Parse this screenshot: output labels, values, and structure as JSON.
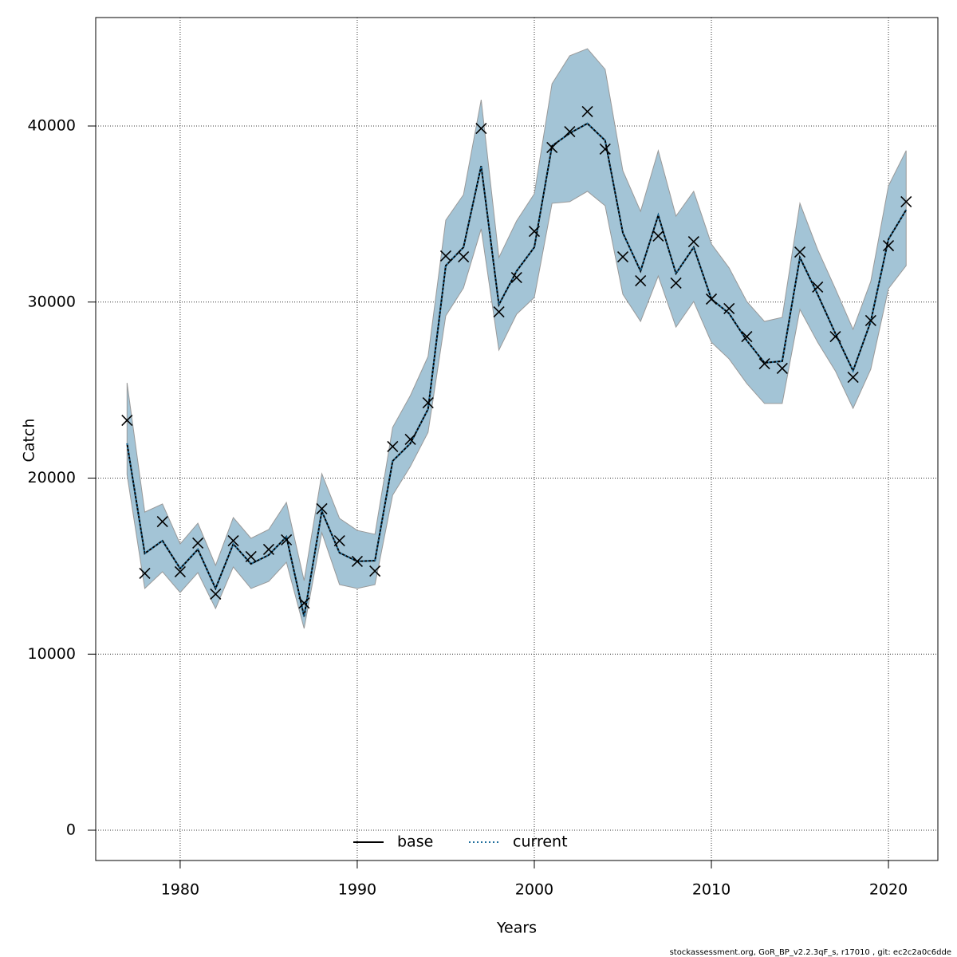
{
  "chart_data": {
    "type": "line",
    "x_label": "Years",
    "y_label": "Catch",
    "footer": "stockassessment.org, GoR_BP_v2.2.3qF_s, r17010 , git: ec2c2a0c6dde",
    "x": [
      1977,
      1978,
      1979,
      1980,
      1981,
      1982,
      1983,
      1984,
      1985,
      1986,
      1987,
      1988,
      1989,
      1990,
      1991,
      1992,
      1993,
      1994,
      1995,
      1996,
      1997,
      1998,
      1999,
      2000,
      2001,
      2002,
      2003,
      2004,
      2005,
      2006,
      2007,
      2008,
      2009,
      2010,
      2011,
      2012,
      2013,
      2014,
      2015,
      2016,
      2017,
      2018,
      2019,
      2020,
      2021
    ],
    "series": [
      {
        "name": "base",
        "color": "#000000",
        "values": [
          21970,
          15720,
          16440,
          14860,
          15950,
          13730,
          16260,
          15130,
          15630,
          16670,
          12140,
          18120,
          15760,
          15270,
          15310,
          20970,
          21970,
          23920,
          32070,
          33110,
          37730,
          29850,
          31760,
          33110,
          38870,
          39590,
          40140,
          39180,
          33930,
          31760,
          34930,
          31620,
          33110,
          30170,
          29350,
          27810,
          26550,
          26640,
          32530,
          30440,
          28220,
          26090,
          28900,
          33570,
          35240
        ]
      },
      {
        "name": "current",
        "color": "#1f6e9c",
        "values": [
          21970,
          15720,
          16440,
          14860,
          15950,
          13730,
          16260,
          15130,
          15630,
          16670,
          12140,
          18120,
          15760,
          15270,
          15310,
          20970,
          21970,
          23920,
          32070,
          33110,
          37730,
          29850,
          31760,
          33110,
          38870,
          39590,
          40140,
          39180,
          33930,
          31760,
          34930,
          31620,
          33110,
          30170,
          29350,
          27810,
          26550,
          26640,
          32530,
          30440,
          28220,
          26090,
          28900,
          33570,
          35240
        ]
      }
    ],
    "band": {
      "color": "#a3c4d6",
      "upper": [
        25410,
        18070,
        18530,
        16260,
        17440,
        15040,
        17760,
        16580,
        17080,
        18620,
        14180,
        20250,
        17710,
        17030,
        16810,
        22880,
        24690,
        26910,
        34650,
        36100,
        41490,
        32530,
        34610,
        36150,
        42400,
        43990,
        44390,
        43220,
        37460,
        35150,
        38600,
        34880,
        36290,
        33300,
        31940,
        30030,
        28900,
        29130,
        35610,
        32980,
        30760,
        28450,
        31170,
        36600,
        38600
      ],
      "lower": [
        20200,
        13730,
        14680,
        13500,
        14630,
        12590,
        14950,
        13730,
        14130,
        15220,
        11460,
        16900,
        13950,
        13730,
        13950,
        19030,
        20660,
        22600,
        29220,
        30800,
        34160,
        27270,
        29310,
        30260,
        35610,
        35700,
        36290,
        35470,
        30440,
        28900,
        31480,
        28580,
        30030,
        27720,
        26770,
        25370,
        24240,
        24240,
        29580,
        27720,
        26090,
        23960,
        26180,
        30760,
        32070
      ]
    },
    "observed": {
      "color": "#000000",
      "values": [
        23280,
        14590,
        17530,
        14680,
        16310,
        13410,
        16440,
        15540,
        15950,
        16490,
        12900,
        18260,
        16440,
        15270,
        14720,
        21790,
        22200,
        24280,
        32620,
        32570,
        39860,
        29440,
        31390,
        34020,
        38780,
        39680,
        40820,
        38690,
        32570,
        31210,
        33750,
        31080,
        33430,
        30170,
        29630,
        28040,
        26500,
        26230,
        32840,
        30850,
        28040,
        25730,
        28950,
        33200,
        35700
      ]
    },
    "xlim": [
      1975.23,
      2022.79
    ],
    "ylim": [
      -1721,
      46161
    ],
    "xticks": [
      1980,
      1990,
      2000,
      2010,
      2020
    ],
    "yticks": [
      0,
      10000,
      20000,
      30000,
      40000
    ],
    "grid": true,
    "legend": "bottom"
  }
}
